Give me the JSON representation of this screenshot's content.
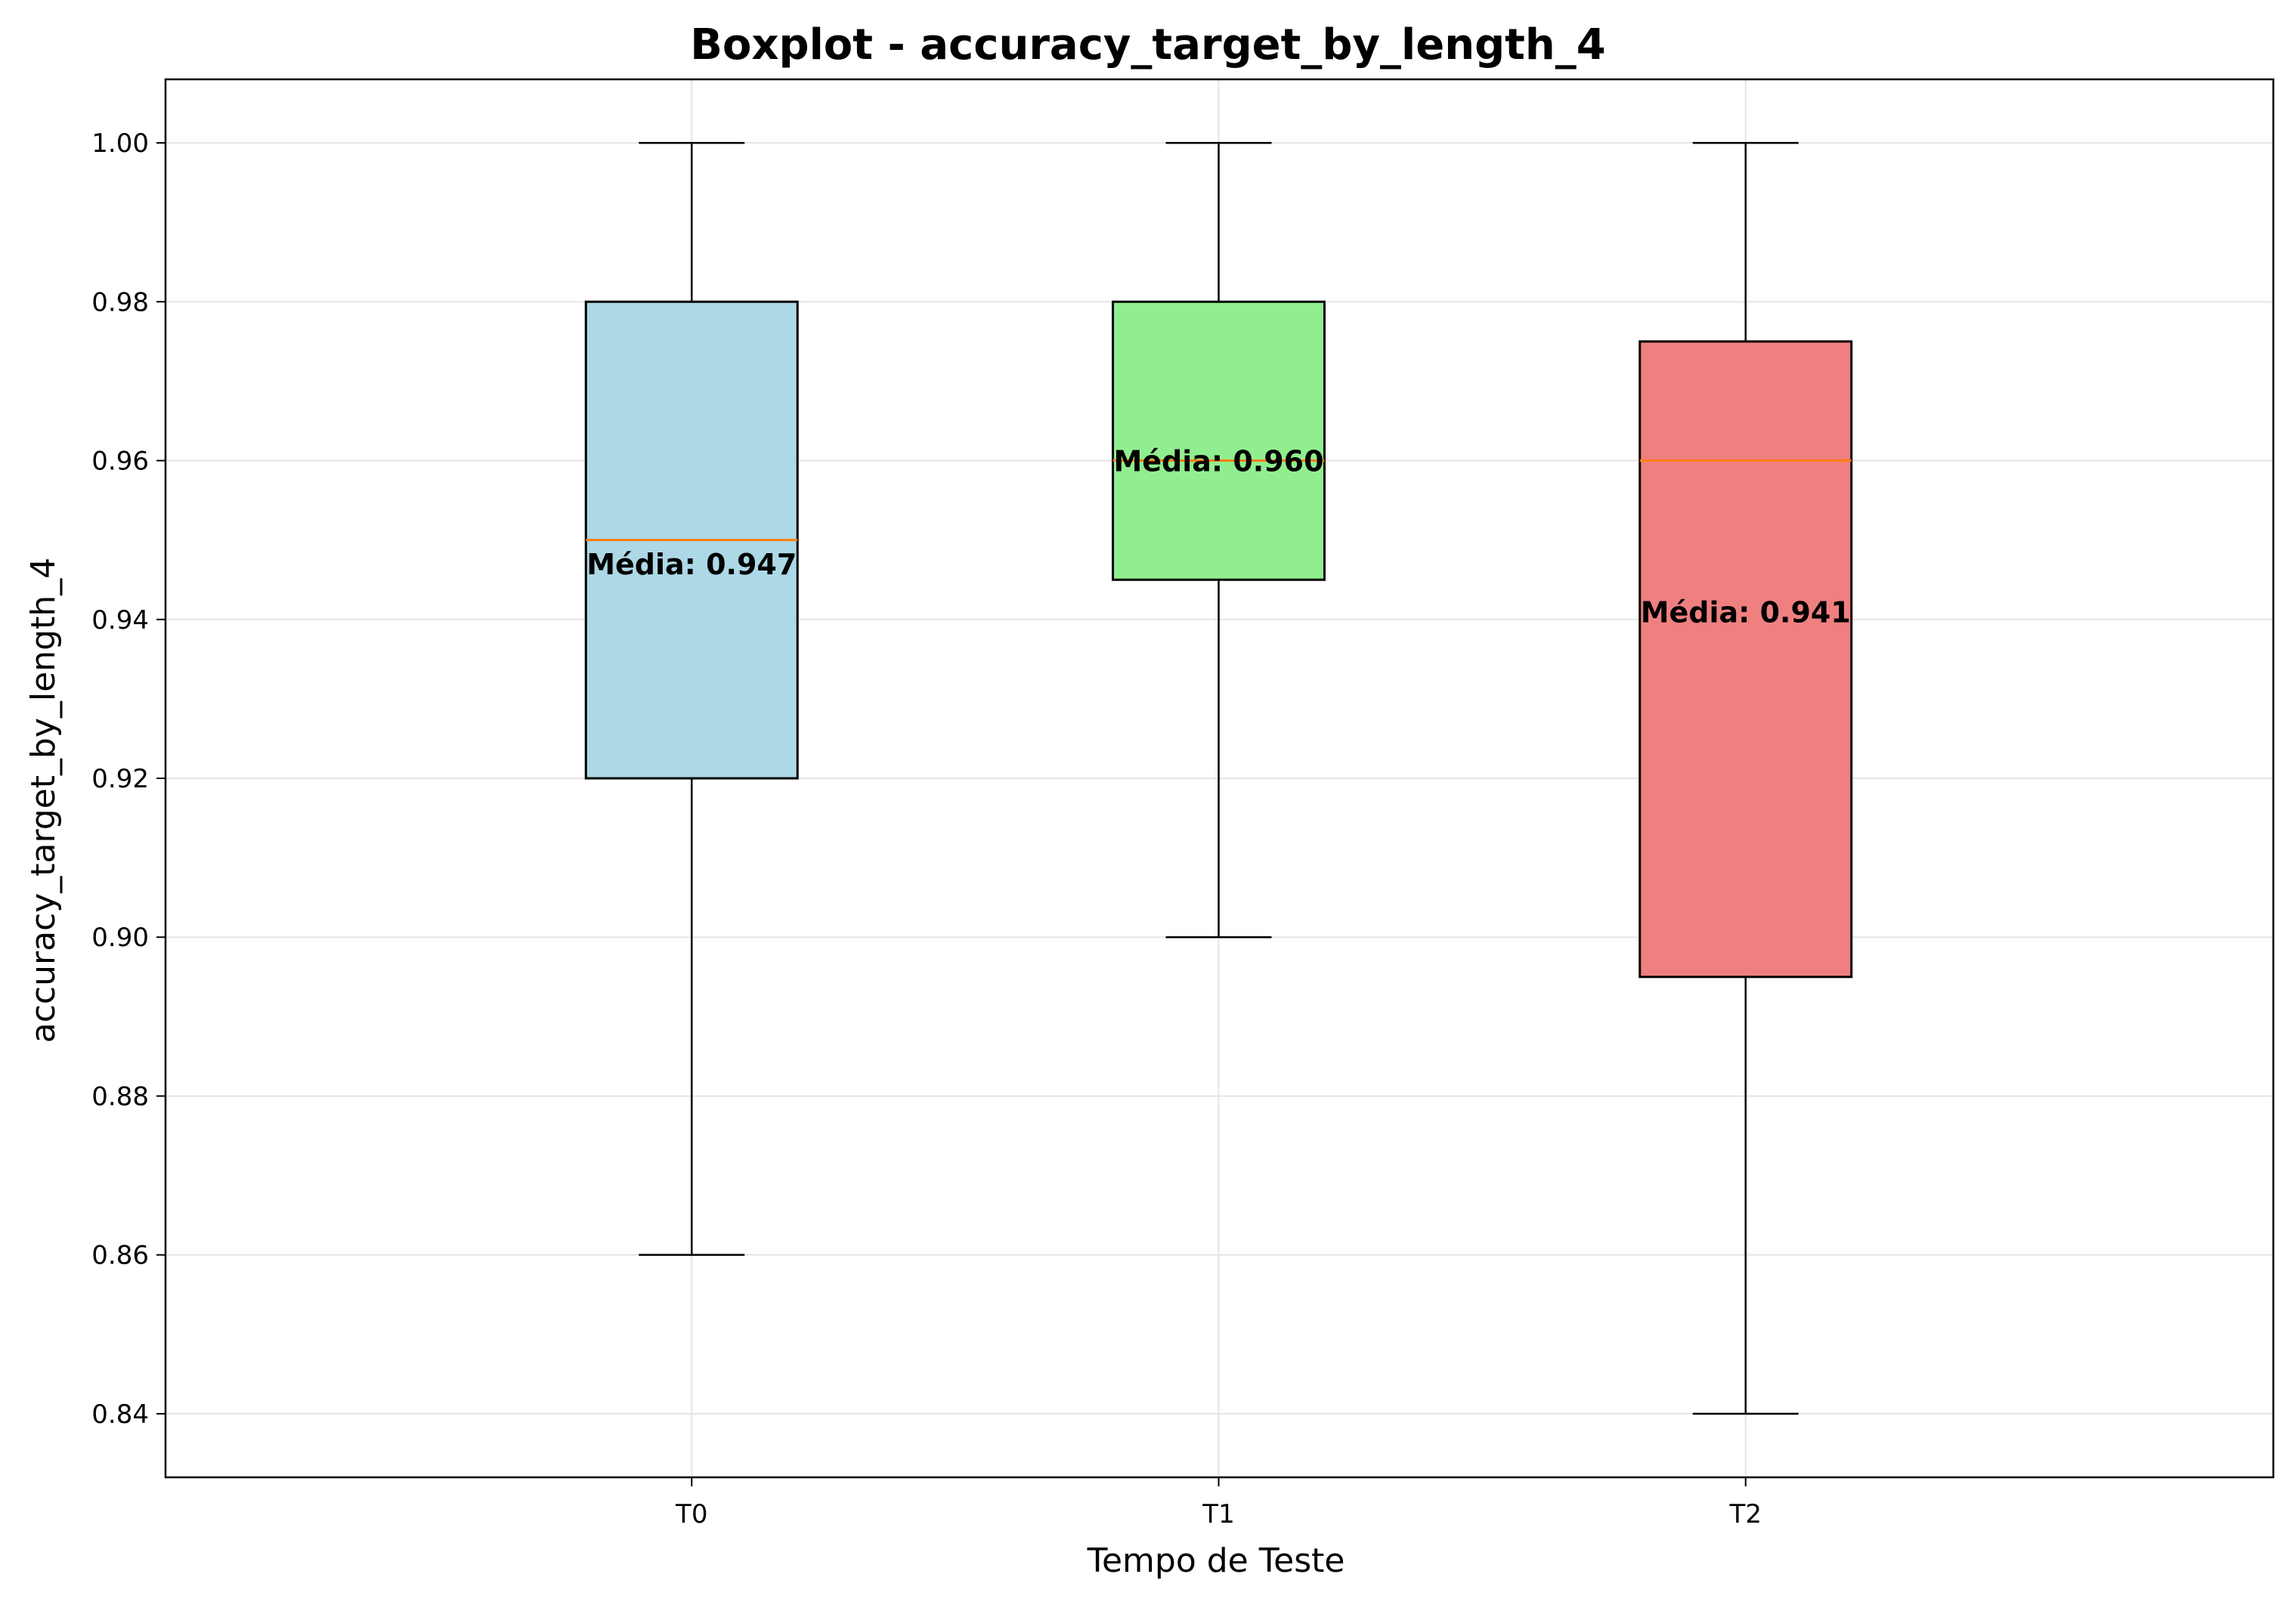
{
  "chart_data": {
    "type": "boxplot",
    "title": "Boxplot - accuracy_target_by_length_4",
    "xlabel": "Tempo de Teste",
    "ylabel": "accuracy_target_by_length_4",
    "ylim": [
      0.832,
      1.008
    ],
    "yticks": [
      0.84,
      0.86,
      0.88,
      0.9,
      0.92,
      0.94,
      0.96,
      0.98,
      1.0
    ],
    "ytick_labels": [
      "0.84",
      "0.86",
      "0.88",
      "0.90",
      "0.92",
      "0.94",
      "0.96",
      "0.98",
      "1.00"
    ],
    "categories": [
      "T0",
      "T1",
      "T2"
    ],
    "grid": true,
    "colors": {
      "median": "#ff7f0e",
      "grid": "#e5e5e5",
      "edge": "#000000"
    },
    "boxes": [
      {
        "name": "T0",
        "whisker_low": 0.86,
        "q1": 0.92,
        "median": 0.95,
        "q3": 0.98,
        "whisker_high": 1.0,
        "mean": 0.947,
        "mean_label": "Média: 0.947",
        "fill": "#add8e6"
      },
      {
        "name": "T1",
        "whisker_low": 0.9,
        "q1": 0.945,
        "median": 0.96,
        "q3": 0.98,
        "whisker_high": 1.0,
        "mean": 0.96,
        "mean_label": "Média: 0.960",
        "fill": "#90ee90"
      },
      {
        "name": "T2",
        "whisker_low": 0.84,
        "q1": 0.895,
        "median": 0.96,
        "q3": 0.975,
        "whisker_high": 1.0,
        "mean": 0.941,
        "mean_label": "Média: 0.941",
        "fill": "#f08080"
      }
    ]
  }
}
